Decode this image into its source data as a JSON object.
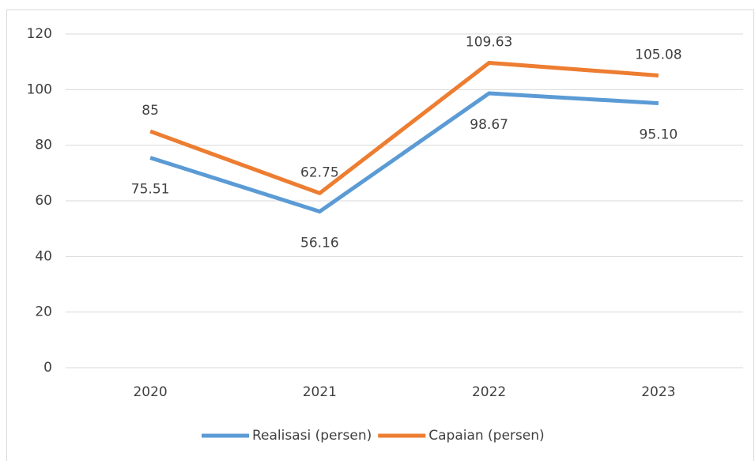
{
  "chart_data": {
    "type": "line",
    "categories": [
      "2020",
      "2021",
      "2022",
      "2023"
    ],
    "series": [
      {
        "name": "Realisasi (persen)",
        "color": "#5b9bd5",
        "values": [
          75.51,
          56.16,
          98.67,
          95.1
        ],
        "value_labels": [
          "75.51",
          "56.16",
          "98.67",
          "95.10"
        ]
      },
      {
        "name": "Capaian (persen)",
        "color": "#ed7d31",
        "values": [
          85,
          62.75,
          109.63,
          105.08
        ]
      }
    ],
    "ylim": [
      0,
      120
    ],
    "yticks": [
      0,
      20,
      40,
      60,
      80,
      100,
      120
    ],
    "grid": true,
    "legend": "bottom"
  }
}
